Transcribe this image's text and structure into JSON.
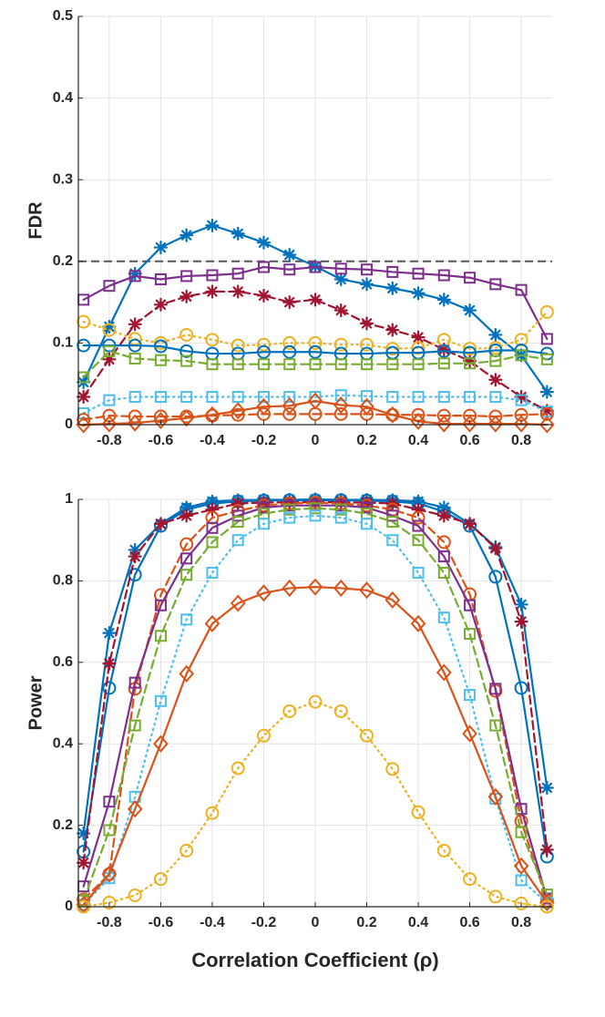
{
  "chart_data": [
    {
      "type": "line",
      "ylabel": "FDR",
      "xlabel": "",
      "xlim": [
        -0.92,
        0.92
      ],
      "ylim": [
        0,
        0.5
      ],
      "grid": true,
      "x": [
        -0.9,
        -0.8,
        -0.7,
        -0.6,
        -0.5,
        -0.4,
        -0.3,
        -0.2,
        -0.1,
        0,
        0.1,
        0.2,
        0.3,
        0.4,
        0.5,
        0.6,
        0.7,
        0.8,
        0.9
      ],
      "xticks": [
        "-0.8",
        "-0.6",
        "-0.4",
        "-0.2",
        "0",
        "0.2",
        "0.4",
        "0.6",
        "0.8"
      ],
      "yticks": [
        "0",
        "0.1",
        "0.2",
        "0.3",
        "0.4",
        "0.5"
      ],
      "reference_line": {
        "y": 0.2,
        "color": "#555555"
      },
      "series": [
        {
          "id": "blue-star",
          "color": "#0072BD",
          "dash": "solid",
          "marker": "star",
          "values": [
            0.052,
            0.12,
            0.185,
            0.217,
            0.232,
            0.244,
            0.234,
            0.223,
            0.208,
            0.194,
            0.178,
            0.172,
            0.167,
            0.161,
            0.153,
            0.14,
            0.11,
            0.085,
            0.04
          ]
        },
        {
          "id": "purple-square",
          "color": "#7E2F8E",
          "dash": "solid",
          "marker": "square",
          "values": [
            0.153,
            0.17,
            0.182,
            0.178,
            0.182,
            0.183,
            0.185,
            0.193,
            0.19,
            0.193,
            0.191,
            0.19,
            0.187,
            0.185,
            0.183,
            0.18,
            0.172,
            0.165,
            0.105
          ]
        },
        {
          "id": "darkred-star",
          "color": "#A2142F",
          "dash": "dash",
          "marker": "star",
          "values": [
            0.034,
            0.08,
            0.123,
            0.147,
            0.157,
            0.163,
            0.163,
            0.158,
            0.15,
            0.153,
            0.14,
            0.124,
            0.116,
            0.107,
            0.092,
            0.078,
            0.055,
            0.034,
            0.017
          ]
        },
        {
          "id": "yellow-circle",
          "color": "#EDB120",
          "dash": "dot",
          "marker": "circle",
          "values": [
            0.126,
            0.116,
            0.105,
            0.1,
            0.11,
            0.104,
            0.097,
            0.098,
            0.1,
            0.1,
            0.098,
            0.098,
            0.093,
            0.094,
            0.104,
            0.093,
            0.094,
            0.104,
            0.138
          ]
        },
        {
          "id": "blue-circle",
          "color": "#0072BD",
          "dash": "solid",
          "marker": "circle",
          "values": [
            0.097,
            0.097,
            0.097,
            0.096,
            0.09,
            0.087,
            0.087,
            0.089,
            0.089,
            0.089,
            0.087,
            0.087,
            0.088,
            0.088,
            0.09,
            0.088,
            0.091,
            0.091,
            0.087
          ]
        },
        {
          "id": "green-square",
          "color": "#77AC30",
          "dash": "dash",
          "marker": "square",
          "values": [
            0.058,
            0.09,
            0.081,
            0.079,
            0.078,
            0.074,
            0.074,
            0.074,
            0.074,
            0.074,
            0.074,
            0.074,
            0.074,
            0.074,
            0.075,
            0.075,
            0.078,
            0.085,
            0.08
          ]
        },
        {
          "id": "cyan-square",
          "color": "#4DBEEE",
          "dash": "dot",
          "marker": "square",
          "values": [
            0.014,
            0.03,
            0.034,
            0.034,
            0.034,
            0.034,
            0.034,
            0.034,
            0.034,
            0.034,
            0.036,
            0.035,
            0.034,
            0.034,
            0.034,
            0.034,
            0.034,
            0.03,
            0.016
          ]
        },
        {
          "id": "orange-circle",
          "color": "#D95319",
          "dash": "dash",
          "marker": "circle",
          "values": [
            0.006,
            0.011,
            0.01,
            0.01,
            0.01,
            0.011,
            0.012,
            0.013,
            0.013,
            0.013,
            0.013,
            0.013,
            0.012,
            0.012,
            0.011,
            0.011,
            0.01,
            0.012,
            0.013
          ]
        },
        {
          "id": "orange-diamond",
          "color": "#D95319",
          "dash": "solid",
          "marker": "diamond",
          "values": [
            0,
            0.001,
            0.002,
            0.005,
            0.008,
            0.012,
            0.017,
            0.022,
            0.023,
            0.029,
            0.024,
            0.022,
            0.012,
            0.004,
            0.001,
            0.001,
            0.001,
            0.001,
            0
          ]
        }
      ]
    },
    {
      "type": "line",
      "ylabel": "Power",
      "xlabel": "Correlation Coefficient (ρ)",
      "xlim": [
        -0.92,
        0.92
      ],
      "ylim": [
        0,
        1
      ],
      "grid": true,
      "x": [
        -0.9,
        -0.8,
        -0.7,
        -0.6,
        -0.5,
        -0.4,
        -0.3,
        -0.2,
        -0.1,
        0,
        0.1,
        0.2,
        0.3,
        0.4,
        0.5,
        0.6,
        0.7,
        0.8,
        0.9
      ],
      "xticks": [
        "-0.8",
        "-0.6",
        "-0.4",
        "-0.2",
        "0",
        "0.2",
        "0.4",
        "0.6",
        "0.8"
      ],
      "yticks": [
        "0",
        "0.2",
        "0.4",
        "0.6",
        "0.8",
        "1"
      ],
      "series": [
        {
          "id": "blue-star",
          "color": "#0072BD",
          "dash": "solid",
          "marker": "star",
          "values": [
            0.18,
            0.672,
            0.876,
            0.94,
            0.98,
            0.995,
            0.998,
            0.999,
            0.999,
            1,
            0.999,
            0.999,
            0.998,
            0.995,
            0.98,
            0.94,
            0.883,
            0.742,
            0.292
          ]
        },
        {
          "id": "blue-circle",
          "color": "#0072BD",
          "dash": "solid",
          "marker": "circle",
          "values": [
            0.135,
            0.537,
            0.815,
            0.935,
            0.975,
            0.99,
            0.995,
            0.997,
            0.998,
            0.998,
            0.998,
            0.997,
            0.995,
            0.99,
            0.97,
            0.935,
            0.81,
            0.537,
            0.123
          ]
        },
        {
          "id": "darkred-star",
          "color": "#A2142F",
          "dash": "dash",
          "marker": "star",
          "values": [
            0.108,
            0.597,
            0.86,
            0.94,
            0.96,
            0.975,
            0.99,
            0.992,
            0.993,
            0.993,
            0.993,
            0.992,
            0.99,
            0.975,
            0.96,
            0.94,
            0.88,
            0.7,
            0.14
          ]
        },
        {
          "id": "orange-circle",
          "color": "#D95319",
          "dash": "dash",
          "marker": "circle",
          "values": [
            0.018,
            0.08,
            0.535,
            0.765,
            0.89,
            0.955,
            0.972,
            0.985,
            0.99,
            0.992,
            0.99,
            0.985,
            0.975,
            0.955,
            0.895,
            0.767,
            0.53,
            0.21,
            0.015
          ]
        },
        {
          "id": "purple-square",
          "color": "#7E2F8E",
          "dash": "solid",
          "marker": "square",
          "values": [
            0.05,
            0.258,
            0.55,
            0.74,
            0.855,
            0.93,
            0.96,
            0.98,
            0.985,
            0.985,
            0.985,
            0.98,
            0.96,
            0.935,
            0.86,
            0.74,
            0.535,
            0.24,
            0.02
          ]
        },
        {
          "id": "green-square",
          "color": "#77AC30",
          "dash": "dash",
          "marker": "square",
          "values": [
            0.015,
            0.188,
            0.445,
            0.665,
            0.815,
            0.895,
            0.945,
            0.965,
            0.975,
            0.978,
            0.975,
            0.965,
            0.945,
            0.9,
            0.82,
            0.67,
            0.445,
            0.183,
            0.03
          ]
        },
        {
          "id": "cyan-square",
          "color": "#4DBEEE",
          "dash": "dot",
          "marker": "square",
          "values": [
            0.005,
            0.07,
            0.27,
            0.505,
            0.705,
            0.82,
            0.9,
            0.94,
            0.955,
            0.96,
            0.955,
            0.94,
            0.9,
            0.82,
            0.71,
            0.52,
            0.265,
            0.065,
            0.01
          ]
        },
        {
          "id": "orange-diamond",
          "color": "#D95319",
          "dash": "solid",
          "marker": "diamond",
          "values": [
            0.005,
            0.08,
            0.24,
            0.4,
            0.572,
            0.695,
            0.745,
            0.77,
            0.782,
            0.785,
            0.782,
            0.777,
            0.753,
            0.695,
            0.575,
            0.425,
            0.27,
            0.1,
            0.01
          ]
        },
        {
          "id": "yellow-circle",
          "color": "#EDB120",
          "dash": "dot",
          "marker": "circle",
          "values": [
            0,
            0.01,
            0.028,
            0.068,
            0.138,
            0.23,
            0.34,
            0.42,
            0.48,
            0.503,
            0.48,
            0.42,
            0.338,
            0.232,
            0.138,
            0.068,
            0.025,
            0.008,
            0
          ]
        }
      ]
    }
  ]
}
